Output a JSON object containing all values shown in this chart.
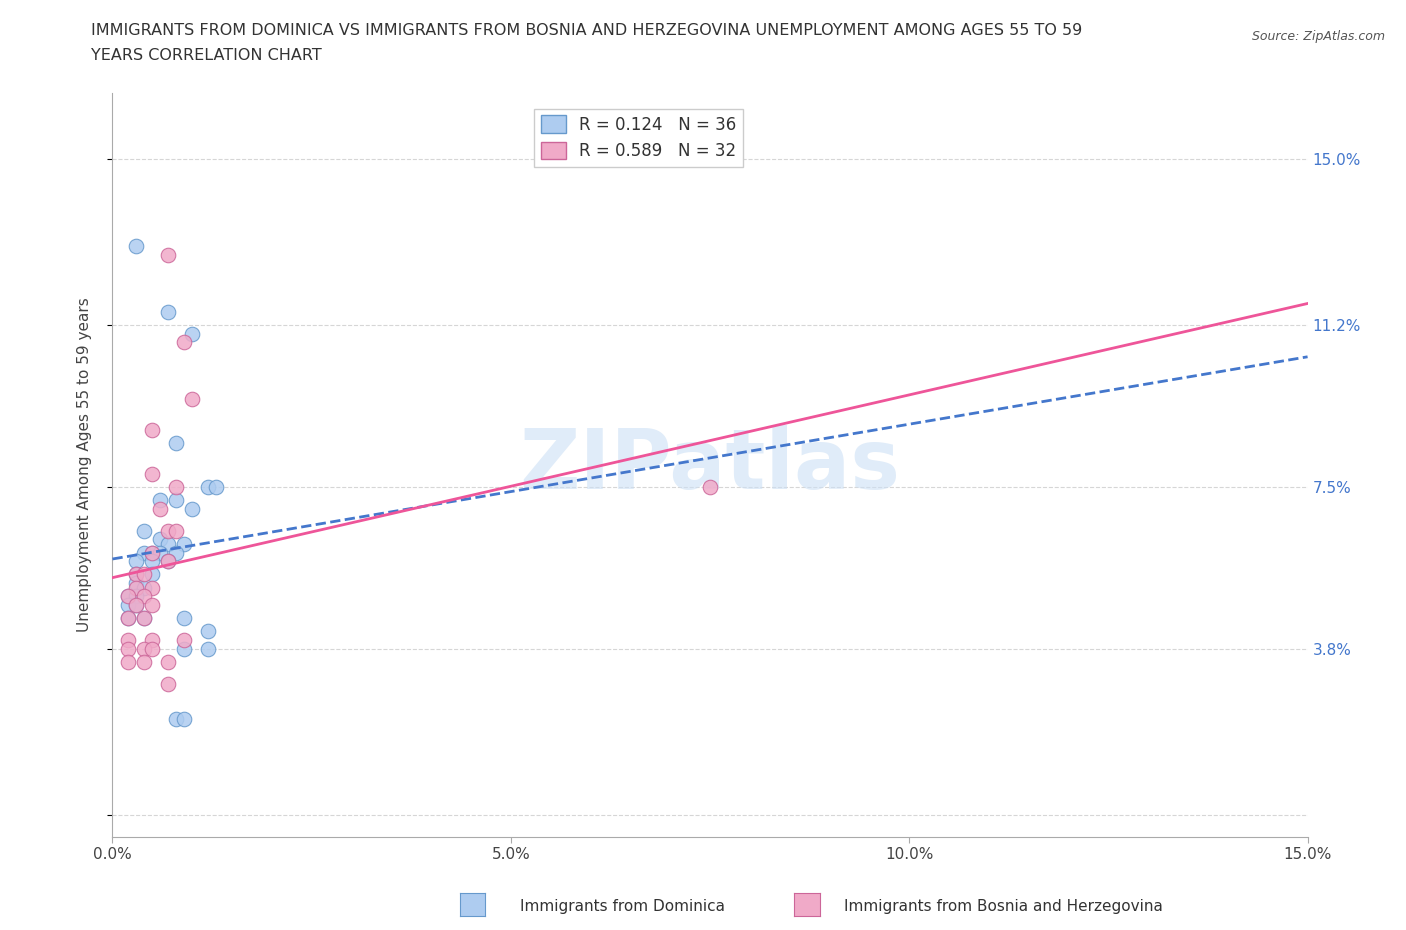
{
  "title_line1": "IMMIGRANTS FROM DOMINICA VS IMMIGRANTS FROM BOSNIA AND HERZEGOVINA UNEMPLOYMENT AMONG AGES 55 TO 59",
  "title_line2": "YEARS CORRELATION CHART",
  "source": "Source: ZipAtlas.com",
  "ylabel": "Unemployment Among Ages 55 to 59 years",
  "xlim": [
    0.0,
    0.15
  ],
  "ylim": [
    -0.005,
    0.165
  ],
  "xticks": [
    0.0,
    0.05,
    0.1,
    0.15
  ],
  "xtick_labels": [
    "0.0%",
    "5.0%",
    "10.0%",
    "15.0%"
  ],
  "ytick_positions": [
    0.0,
    0.038,
    0.075,
    0.112,
    0.15
  ],
  "right_ytick_positions": [
    0.038,
    0.075,
    0.112,
    0.15
  ],
  "right_ytick_labels": [
    "3.8%",
    "7.5%",
    "11.2%",
    "15.0%"
  ],
  "legend_label_blue": "R = 0.124   N = 36",
  "legend_label_pink": "R = 0.589   N = 32",
  "dominica_color": "#aeccf0",
  "dominica_edge": "#6699cc",
  "bosnia_color": "#f0aac8",
  "bosnia_edge": "#cc6699",
  "dominica_line_color": "#4477cc",
  "bosnia_line_color": "#ee5599",
  "watermark_text": "ZIPatlas",
  "bottom_legend_blue": "Immigrants from Dominica",
  "bottom_legend_pink": "Immigrants from Bosnia and Herzegovina",
  "dominica_points": [
    [
      0.003,
      0.13
    ],
    [
      0.007,
      0.115
    ],
    [
      0.01,
      0.11
    ],
    [
      0.008,
      0.085
    ],
    [
      0.012,
      0.075
    ],
    [
      0.013,
      0.075
    ],
    [
      0.006,
      0.072
    ],
    [
      0.008,
      0.072
    ],
    [
      0.01,
      0.07
    ],
    [
      0.004,
      0.065
    ],
    [
      0.006,
      0.063
    ],
    [
      0.007,
      0.062
    ],
    [
      0.009,
      0.062
    ],
    [
      0.004,
      0.06
    ],
    [
      0.005,
      0.06
    ],
    [
      0.006,
      0.06
    ],
    [
      0.008,
      0.06
    ],
    [
      0.003,
      0.058
    ],
    [
      0.005,
      0.058
    ],
    [
      0.007,
      0.058
    ],
    [
      0.003,
      0.055
    ],
    [
      0.005,
      0.055
    ],
    [
      0.003,
      0.053
    ],
    [
      0.004,
      0.052
    ],
    [
      0.002,
      0.05
    ],
    [
      0.003,
      0.05
    ],
    [
      0.002,
      0.048
    ],
    [
      0.003,
      0.048
    ],
    [
      0.002,
      0.045
    ],
    [
      0.004,
      0.045
    ],
    [
      0.009,
      0.045
    ],
    [
      0.012,
      0.042
    ],
    [
      0.009,
      0.038
    ],
    [
      0.012,
      0.038
    ],
    [
      0.008,
      0.022
    ],
    [
      0.009,
      0.022
    ]
  ],
  "bosnia_points": [
    [
      0.007,
      0.128
    ],
    [
      0.01,
      0.095
    ],
    [
      0.005,
      0.088
    ],
    [
      0.005,
      0.078
    ],
    [
      0.008,
      0.075
    ],
    [
      0.006,
      0.07
    ],
    [
      0.007,
      0.065
    ],
    [
      0.008,
      0.065
    ],
    [
      0.005,
      0.06
    ],
    [
      0.007,
      0.058
    ],
    [
      0.003,
      0.055
    ],
    [
      0.004,
      0.055
    ],
    [
      0.003,
      0.052
    ],
    [
      0.005,
      0.052
    ],
    [
      0.002,
      0.05
    ],
    [
      0.004,
      0.05
    ],
    [
      0.003,
      0.048
    ],
    [
      0.005,
      0.048
    ],
    [
      0.002,
      0.045
    ],
    [
      0.004,
      0.045
    ],
    [
      0.002,
      0.04
    ],
    [
      0.005,
      0.04
    ],
    [
      0.009,
      0.04
    ],
    [
      0.002,
      0.038
    ],
    [
      0.004,
      0.038
    ],
    [
      0.005,
      0.038
    ],
    [
      0.002,
      0.035
    ],
    [
      0.004,
      0.035
    ],
    [
      0.007,
      0.035
    ],
    [
      0.007,
      0.03
    ],
    [
      0.009,
      0.108
    ],
    [
      0.075,
      0.075
    ]
  ],
  "grid_color": "#cccccc",
  "grid_linestyle": "--",
  "spine_color": "#aaaaaa"
}
